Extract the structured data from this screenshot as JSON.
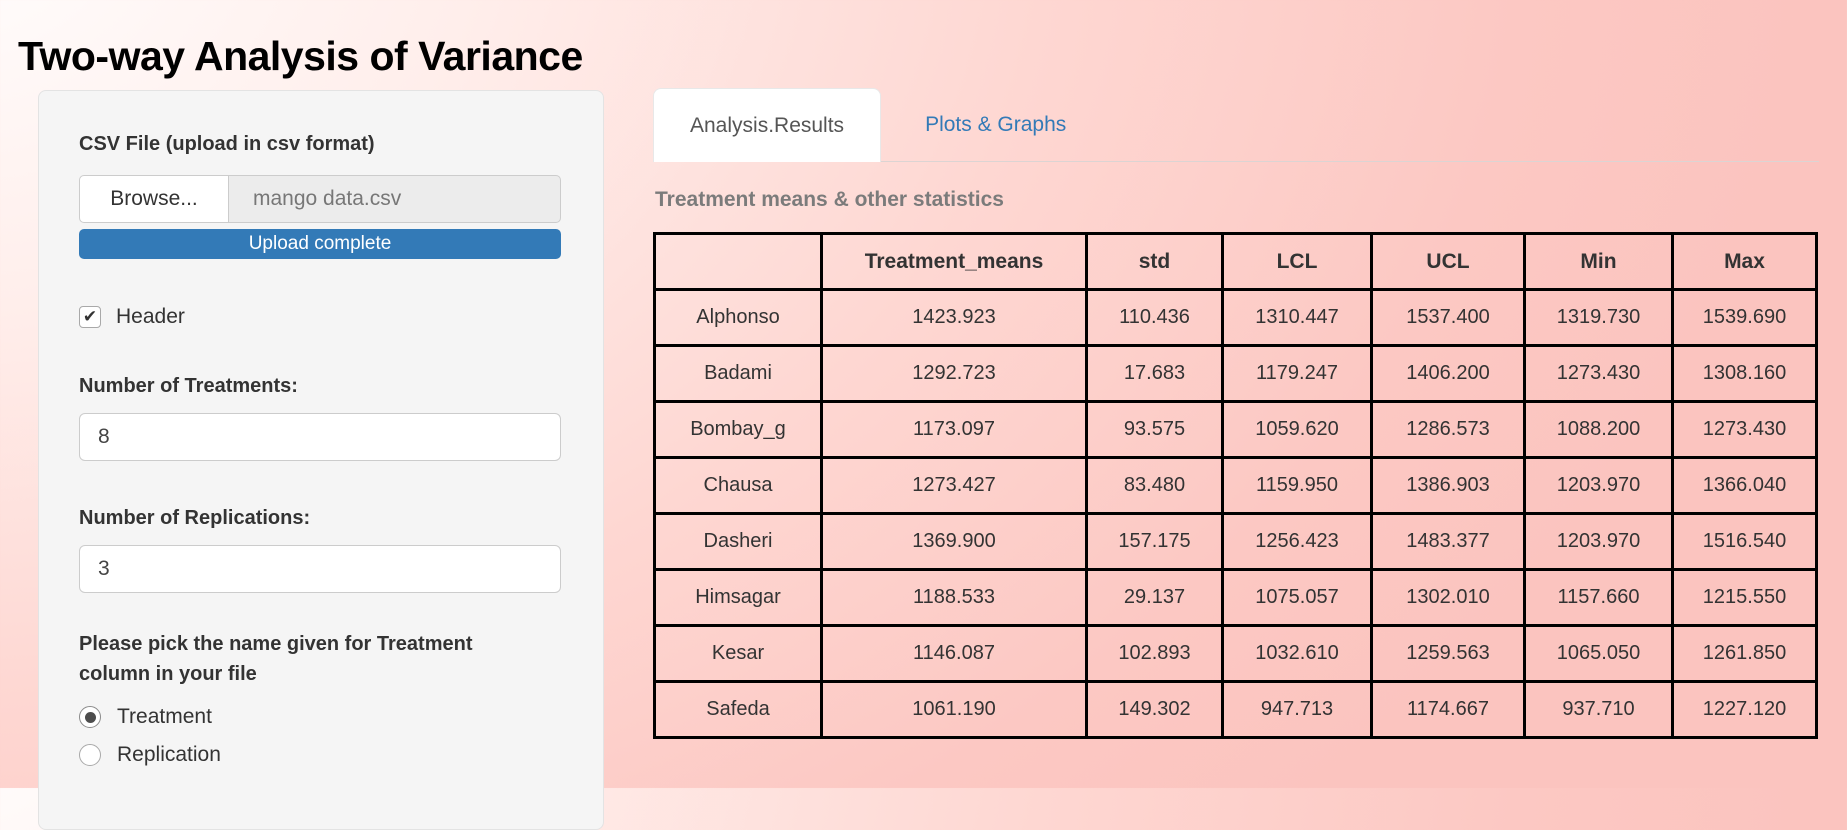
{
  "page": {
    "title": "Two-way Analysis of Variance"
  },
  "sidebar": {
    "csv_label": "CSV File (upload in csv format)",
    "browse_label": "Browse...",
    "file_name": "mango data.csv",
    "upload_status": "Upload complete",
    "header_checkbox": {
      "label": "Header",
      "checked": true
    },
    "treatments_label": "Number of Treatments:",
    "treatments_value": "8",
    "replications_label": "Number of Replications:",
    "replications_value": "3",
    "pick_label": "Please pick the name given for Treatment column in your file",
    "radio_options": [
      {
        "label": "Treatment",
        "selected": true
      },
      {
        "label": "Replication",
        "selected": false
      }
    ]
  },
  "main": {
    "tabs": [
      {
        "label": "Analysis.Results",
        "active": true
      },
      {
        "label": "Plots & Graphs",
        "active": false
      }
    ],
    "section_title": "Treatment means & other statistics"
  },
  "table": {
    "columns": [
      "",
      "Treatment_means",
      "std",
      "LCL",
      "UCL",
      "Min",
      "Max"
    ],
    "rows": [
      {
        "name": "Alphonso",
        "values": [
          "1423.923",
          "110.436",
          "1310.447",
          "1537.400",
          "1319.730",
          "1539.690"
        ]
      },
      {
        "name": "Badami",
        "values": [
          "1292.723",
          "17.683",
          "1179.247",
          "1406.200",
          "1273.430",
          "1308.160"
        ]
      },
      {
        "name": "Bombay_g",
        "values": [
          "1173.097",
          "93.575",
          "1059.620",
          "1286.573",
          "1088.200",
          "1273.430"
        ]
      },
      {
        "name": "Chausa",
        "values": [
          "1273.427",
          "83.480",
          "1159.950",
          "1386.903",
          "1203.970",
          "1366.040"
        ]
      },
      {
        "name": "Dasheri",
        "values": [
          "1369.900",
          "157.175",
          "1256.423",
          "1483.377",
          "1203.970",
          "1516.540"
        ]
      },
      {
        "name": "Himsagar",
        "values": [
          "1188.533",
          "29.137",
          "1075.057",
          "1302.010",
          "1157.660",
          "1215.550"
        ]
      },
      {
        "name": "Kesar",
        "values": [
          "1146.087",
          "102.893",
          "1032.610",
          "1259.563",
          "1065.050",
          "1261.850"
        ]
      },
      {
        "name": "Safeda",
        "values": [
          "1061.190",
          "149.302",
          "947.713",
          "1174.667",
          "937.710",
          "1227.120"
        ]
      }
    ]
  },
  "icons": {
    "check_glyph": "✔"
  },
  "colors": {
    "accent_blue": "#337ab7",
    "link_blue": "#337ab7",
    "table_border": "#000000",
    "panel_bg": "#f5f5f5",
    "page_pink": "#fcc8c3"
  }
}
